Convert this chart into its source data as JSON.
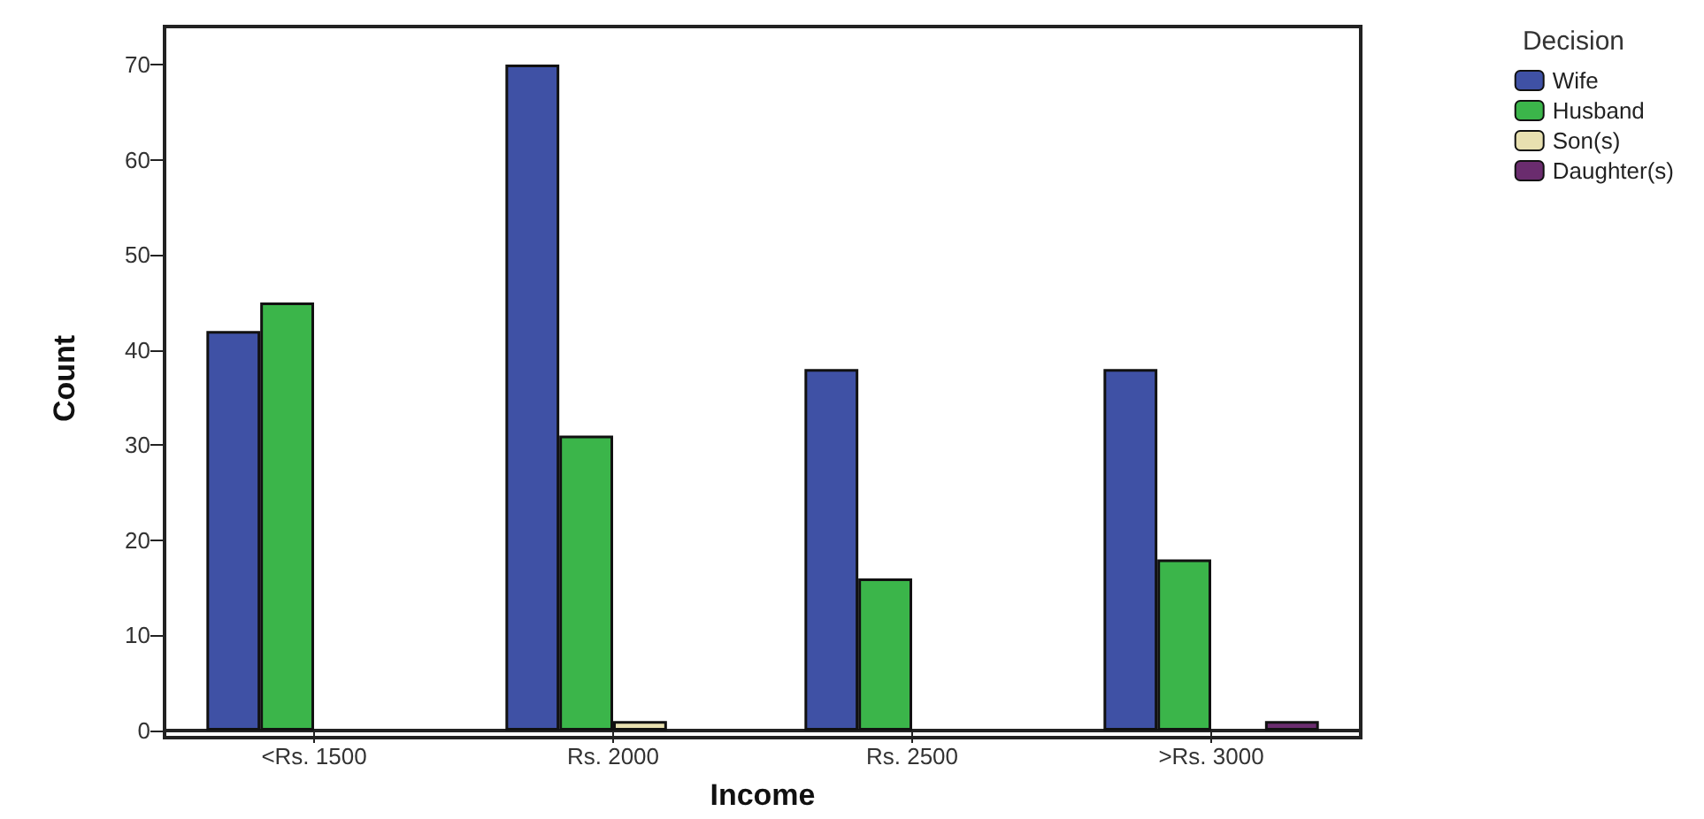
{
  "chart_data": {
    "type": "bar",
    "xlabel": "Income",
    "ylabel": "Count",
    "legend_title": "Decision",
    "categories": [
      "<Rs. 1500",
      "Rs. 2000",
      "Rs. 2500",
      ">Rs. 3000"
    ],
    "series": [
      {
        "name": "Wife",
        "color": "#3f51a5",
        "values": [
          42,
          70,
          38,
          38
        ]
      },
      {
        "name": "Husband",
        "color": "#3bb54a",
        "values": [
          45,
          31,
          16,
          18
        ]
      },
      {
        "name": "Son(s)",
        "color": "#e8e0b0",
        "values": [
          null,
          1,
          null,
          null
        ]
      },
      {
        "name": "Daughter(s)",
        "color": "#6a2c6e",
        "values": [
          null,
          null,
          null,
          1
        ]
      }
    ],
    "ylim": [
      0,
      74
    ],
    "yticks": [
      0,
      10,
      20,
      30,
      40,
      50,
      60,
      70
    ],
    "grid": false,
    "legend": "top right"
  }
}
